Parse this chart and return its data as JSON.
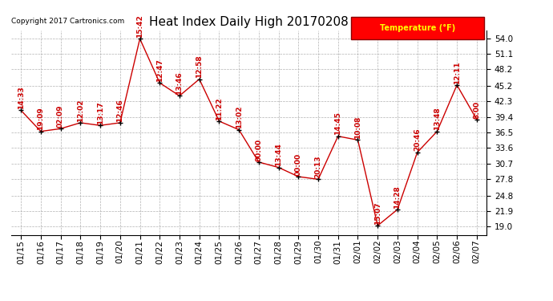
{
  "title": "Heat Index Daily High 20170208",
  "copyright": "Copyright 2017 Cartronics.com",
  "legend_label": "Temperature (°F)",
  "dates": [
    "01/15",
    "01/16",
    "01/17",
    "01/18",
    "01/19",
    "01/20",
    "01/21",
    "01/22",
    "01/23",
    "01/24",
    "01/25",
    "01/26",
    "01/27",
    "01/28",
    "01/29",
    "01/30",
    "01/31",
    "02/01",
    "02/02",
    "02/03",
    "02/04",
    "02/05",
    "02/06",
    "02/07"
  ],
  "values": [
    40.6,
    36.7,
    37.2,
    38.3,
    37.8,
    38.3,
    53.9,
    45.7,
    43.3,
    46.4,
    38.6,
    37.0,
    31.0,
    30.0,
    28.3,
    27.8,
    35.8,
    35.1,
    19.2,
    22.2,
    32.8,
    36.7,
    45.3,
    38.9
  ],
  "time_labels": [
    "14:33",
    "19:09",
    "02:09",
    "12:02",
    "13:17",
    "12:46",
    "15:42",
    "12:47",
    "13:46",
    "12:58",
    "11:22",
    "13:02",
    "00:00",
    "13:44",
    "00:00",
    "20:13",
    "14:45",
    "10:08",
    "15:07",
    "14:28",
    "20:46",
    "13:48",
    "12:11",
    "8:00"
  ],
  "ylim": [
    17.5,
    55.5
  ],
  "yticks": [
    19.0,
    21.9,
    24.8,
    27.8,
    30.7,
    33.6,
    36.5,
    39.4,
    42.3,
    45.2,
    48.2,
    51.1,
    54.0
  ],
  "line_color": "#cc0000",
  "dot_color": "#000000",
  "label_color": "#cc0000",
  "bg_color": "#ffffff",
  "grid_color": "#aaaaaa",
  "title_fontsize": 11,
  "label_fontsize": 6.5,
  "tick_fontsize": 7.5
}
